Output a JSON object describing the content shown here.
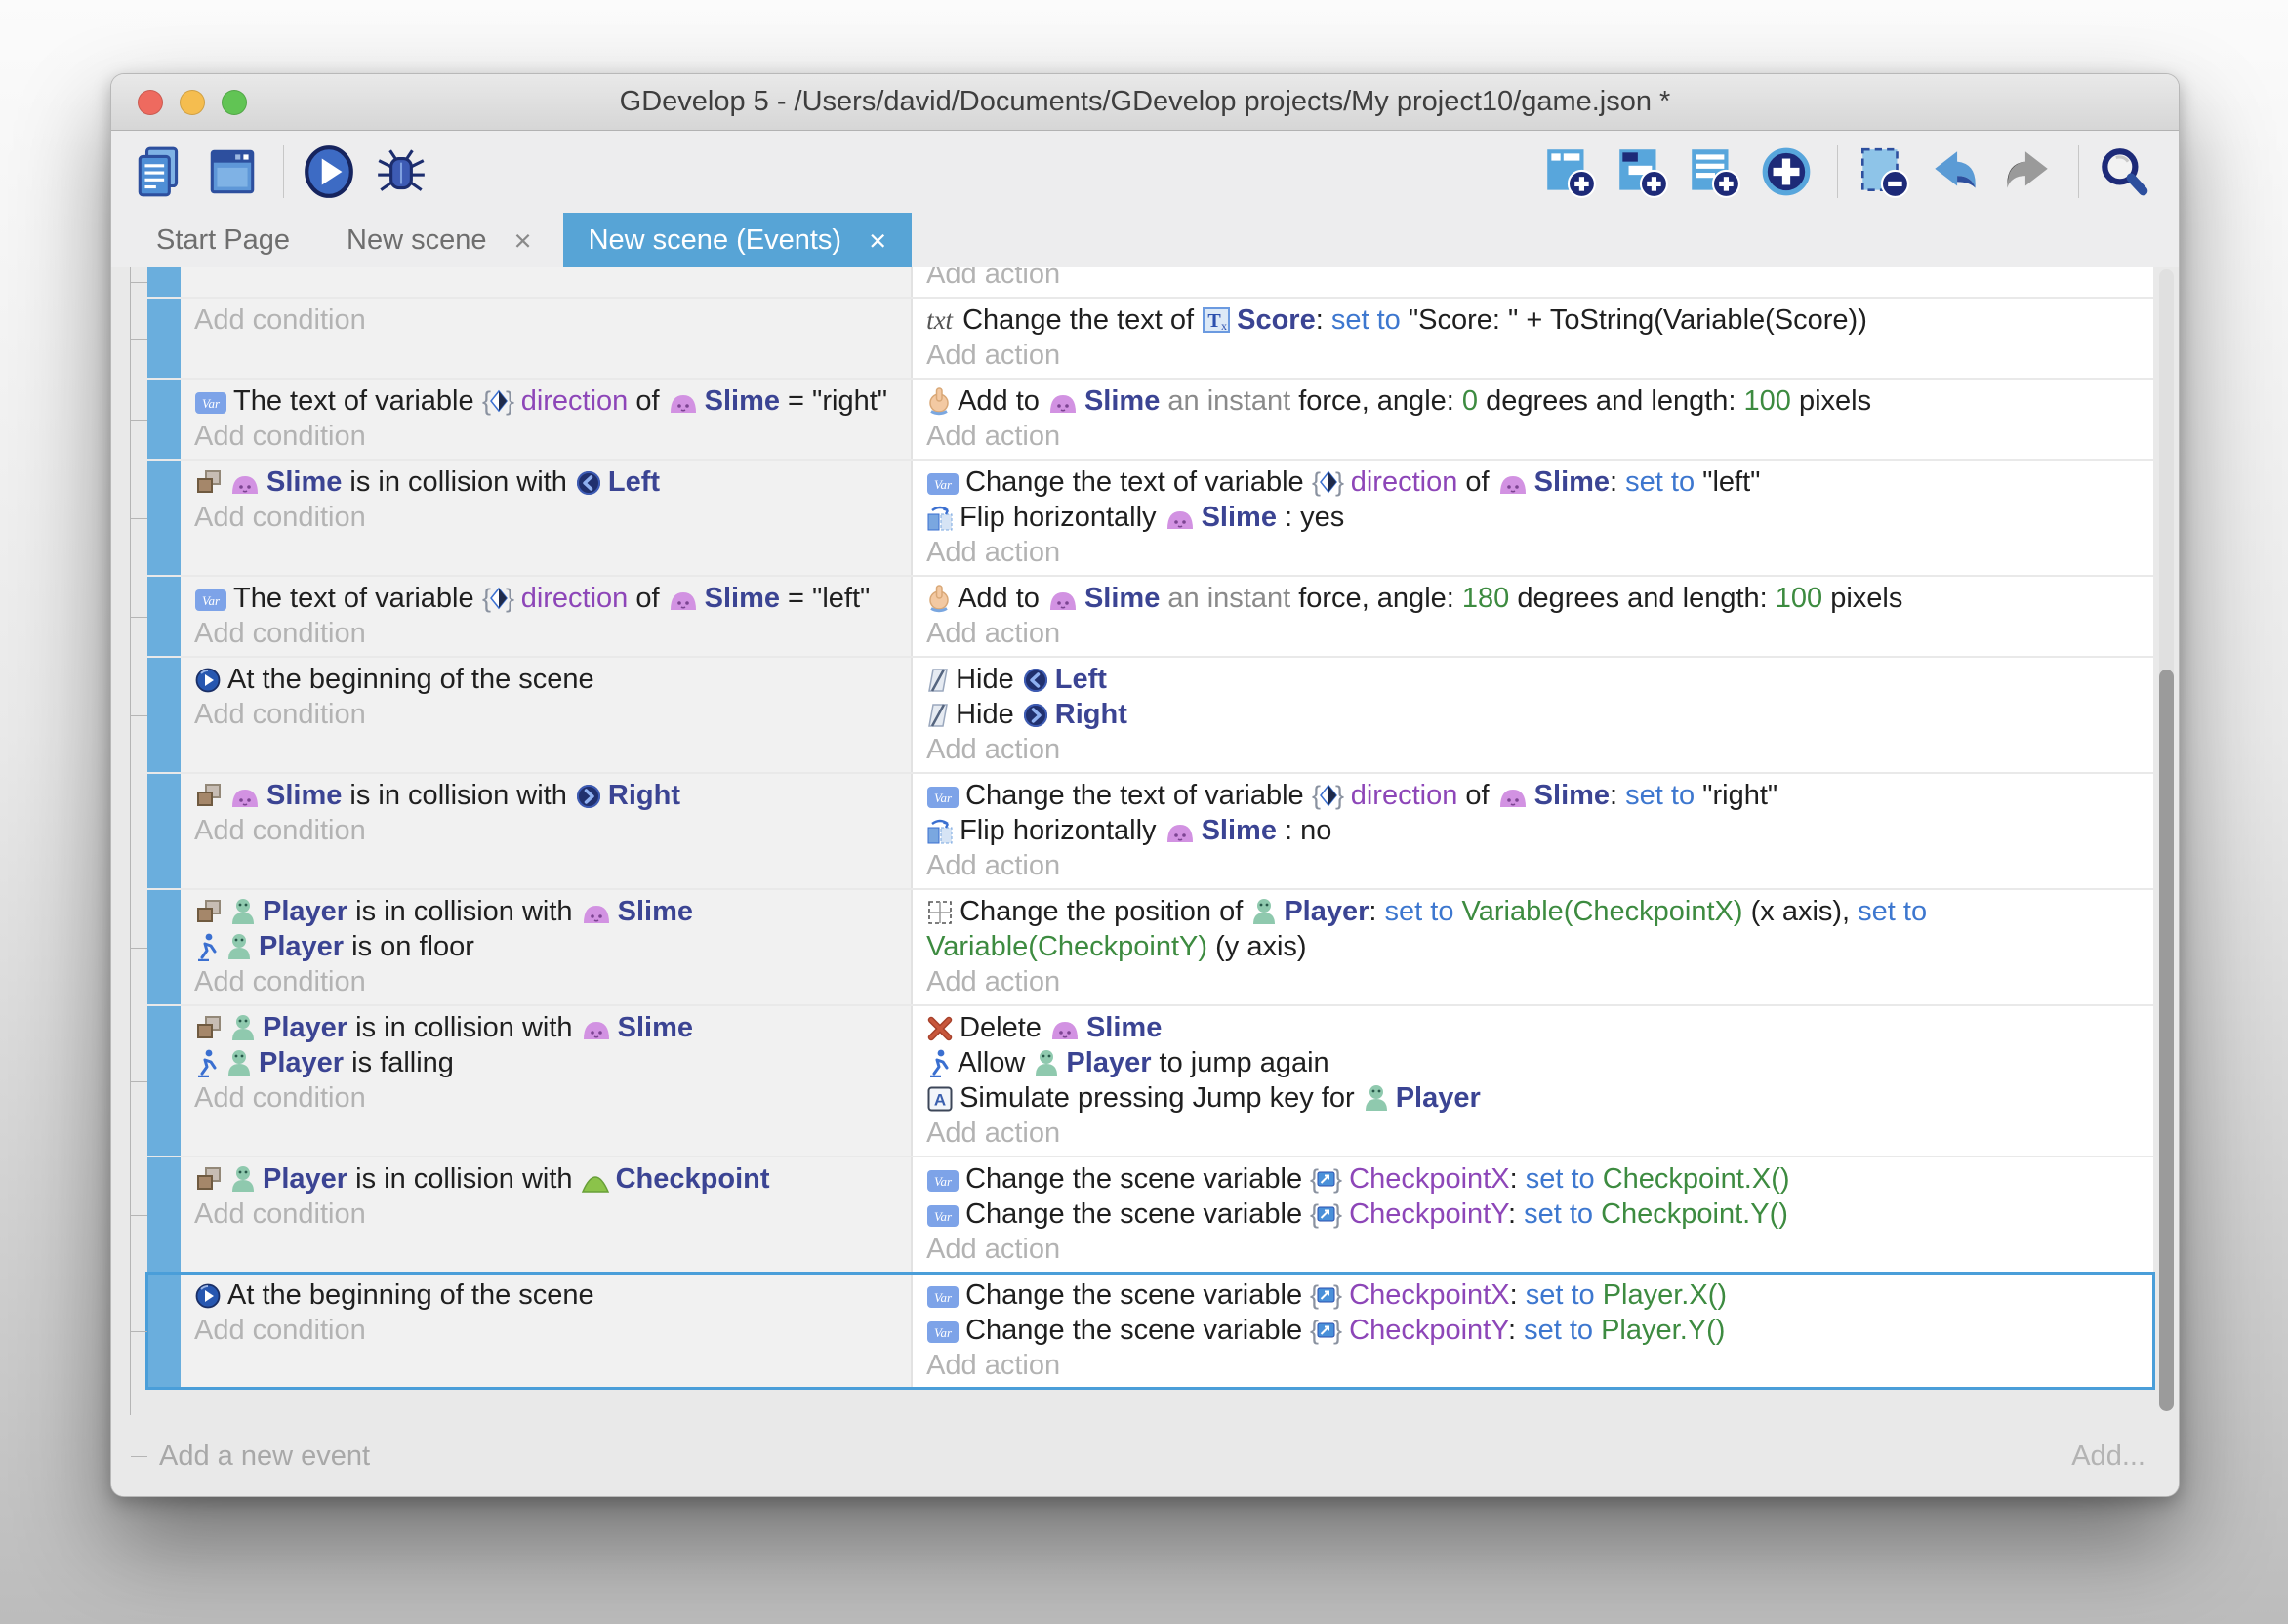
{
  "window": {
    "title": "GDevelop 5 - /Users/david/Documents/GDevelop projects/My project10/game.json *"
  },
  "colors": {
    "accent_tab": "#57a4d6",
    "event_bar": "#6aaedd",
    "object_name": "#3b4493",
    "variable_name": "#8d46b8",
    "keyword": "#3d77cf",
    "expression": "#3d8b40",
    "placeholder": "#b3b3b3",
    "selected_outline": "#4a9ed9",
    "traffic_lights": [
      "#ee6a5f",
      "#f5bd4f",
      "#61c454"
    ]
  },
  "toolbar": {
    "left": [
      {
        "button": "project-manager-button",
        "icon": "project-manager-icon"
      },
      {
        "button": "scene-editor-button",
        "icon": "scene-editor-icon"
      },
      {
        "sep": true
      },
      {
        "button": "preview-button",
        "icon": "play-icon"
      },
      {
        "button": "debug-button",
        "icon": "debug-icon"
      }
    ],
    "right": [
      {
        "button": "add-event-button",
        "icon": "add-event-icon"
      },
      {
        "button": "add-subevent-button",
        "icon": "add-subevent-icon"
      },
      {
        "button": "add-comment-button",
        "icon": "add-comment-icon"
      },
      {
        "button": "add-more-button",
        "icon": "add-circle-icon"
      },
      {
        "sep": true
      },
      {
        "button": "delete-event-button",
        "icon": "remove-event-icon"
      },
      {
        "button": "undo-button",
        "icon": "undo-icon"
      },
      {
        "button": "redo-button",
        "icon": "redo-icon"
      },
      {
        "sep": true
      },
      {
        "button": "search-button",
        "icon": "search-icon"
      }
    ]
  },
  "tabs": [
    {
      "label": "Start Page",
      "closable": false,
      "active": false
    },
    {
      "label": "New scene",
      "closable": true,
      "active": false
    },
    {
      "label": "New scene (Events)",
      "closable": true,
      "active": true
    }
  ],
  "events": [
    {
      "clipped": true,
      "conditions": [],
      "actions": [
        {
          "ph": "Add action"
        }
      ]
    },
    {
      "conditions": [
        {
          "ph": "Add condition"
        }
      ],
      "actions": [
        {
          "seg": [
            {
              "i": "txt-icon"
            },
            {
              "t": "Change the text of ",
              "s": "n"
            },
            {
              "i": "text-object-icon"
            },
            {
              "t": "Score",
              "s": "obj"
            },
            {
              "t": ": ",
              "s": "n"
            },
            {
              "t": "set to ",
              "s": "kw"
            },
            {
              "t": "\"Score: \" + ToString(Variable(Score))",
              "s": "n"
            }
          ]
        },
        {
          "ph": "Add action"
        }
      ]
    },
    {
      "conditions": [
        {
          "seg": [
            {
              "i": "variable-icon"
            },
            {
              "t": "The text of variable ",
              "s": "n"
            },
            {
              "i": "structure-variable-icon"
            },
            {
              "t": "direction",
              "s": "var"
            },
            {
              "t": " of ",
              "s": "n"
            },
            {
              "i": "slime-icon"
            },
            {
              "t": "Slime",
              "s": "obj"
            },
            {
              "t": " = \"right\"",
              "s": "n"
            }
          ]
        },
        {
          "ph": "Add condition"
        }
      ],
      "actions": [
        {
          "seg": [
            {
              "i": "force-hand-icon"
            },
            {
              "t": "Add to ",
              "s": "n"
            },
            {
              "i": "slime-icon"
            },
            {
              "t": "Slime",
              "s": "obj"
            },
            {
              "t": " an instant ",
              "s": "dim"
            },
            {
              "t": "force, angle: ",
              "s": "n"
            },
            {
              "t": "0",
              "s": "expr"
            },
            {
              "t": " degrees and length: ",
              "s": "n"
            },
            {
              "t": "100",
              "s": "expr"
            },
            {
              "t": " pixels",
              "s": "n"
            }
          ]
        },
        {
          "ph": "Add action"
        }
      ]
    },
    {
      "conditions": [
        {
          "seg": [
            {
              "i": "collision-icon"
            },
            {
              "i": "slime-icon"
            },
            {
              "t": "Slime",
              "s": "obj"
            },
            {
              "t": " is in collision with ",
              "s": "n"
            },
            {
              "i": "left-object-icon"
            },
            {
              "t": "Left",
              "s": "obj"
            }
          ]
        },
        {
          "ph": "Add condition"
        }
      ],
      "actions": [
        {
          "seg": [
            {
              "i": "variable-icon"
            },
            {
              "t": "Change the text of variable ",
              "s": "n"
            },
            {
              "i": "structure-variable-icon"
            },
            {
              "t": "direction",
              "s": "var"
            },
            {
              "t": " of ",
              "s": "n"
            },
            {
              "i": "slime-icon"
            },
            {
              "t": "Slime",
              "s": "obj"
            },
            {
              "t": ": ",
              "s": "n"
            },
            {
              "t": "set to ",
              "s": "kw"
            },
            {
              "t": "\"left\"",
              "s": "n"
            }
          ]
        },
        {
          "seg": [
            {
              "i": "flip-icon"
            },
            {
              "t": "Flip horizontally ",
              "s": "n"
            },
            {
              "i": "slime-icon"
            },
            {
              "t": "Slime",
              "s": "obj"
            },
            {
              "t": " : yes",
              "s": "n"
            }
          ]
        },
        {
          "ph": "Add action"
        }
      ]
    },
    {
      "conditions": [
        {
          "seg": [
            {
              "i": "variable-icon"
            },
            {
              "t": "The text of variable ",
              "s": "n"
            },
            {
              "i": "structure-variable-icon"
            },
            {
              "t": "direction",
              "s": "var"
            },
            {
              "t": " of ",
              "s": "n"
            },
            {
              "i": "slime-icon"
            },
            {
              "t": "Slime",
              "s": "obj"
            },
            {
              "t": " = \"left\"",
              "s": "n"
            }
          ]
        },
        {
          "ph": "Add condition"
        }
      ],
      "actions": [
        {
          "seg": [
            {
              "i": "force-hand-icon"
            },
            {
              "t": "Add to ",
              "s": "n"
            },
            {
              "i": "slime-icon"
            },
            {
              "t": "Slime",
              "s": "obj"
            },
            {
              "t": " an instant ",
              "s": "dim"
            },
            {
              "t": "force, angle: ",
              "s": "n"
            },
            {
              "t": "180",
              "s": "expr"
            },
            {
              "t": " degrees and length: ",
              "s": "n"
            },
            {
              "t": "100",
              "s": "expr"
            },
            {
              "t": " pixels",
              "s": "n"
            }
          ]
        },
        {
          "ph": "Add action"
        }
      ]
    },
    {
      "conditions": [
        {
          "seg": [
            {
              "i": "begin-icon"
            },
            {
              "t": "At the beginning of the scene",
              "s": "n"
            }
          ]
        },
        {
          "ph": "Add condition"
        }
      ],
      "actions": [
        {
          "seg": [
            {
              "i": "hide-icon"
            },
            {
              "t": "Hide ",
              "s": "n"
            },
            {
              "i": "left-object-icon"
            },
            {
              "t": "Left",
              "s": "obj"
            }
          ]
        },
        {
          "seg": [
            {
              "i": "hide-icon"
            },
            {
              "t": "Hide ",
              "s": "n"
            },
            {
              "i": "right-object-icon"
            },
            {
              "t": "Right",
              "s": "obj"
            }
          ]
        },
        {
          "ph": "Add action"
        }
      ]
    },
    {
      "conditions": [
        {
          "seg": [
            {
              "i": "collision-icon"
            },
            {
              "i": "slime-icon"
            },
            {
              "t": "Slime",
              "s": "obj"
            },
            {
              "t": " is in collision with ",
              "s": "n"
            },
            {
              "i": "right-object-icon"
            },
            {
              "t": "Right",
              "s": "obj"
            }
          ]
        },
        {
          "ph": "Add condition"
        }
      ],
      "actions": [
        {
          "seg": [
            {
              "i": "variable-icon"
            },
            {
              "t": "Change the text of variable ",
              "s": "n"
            },
            {
              "i": "structure-variable-icon"
            },
            {
              "t": "direction",
              "s": "var"
            },
            {
              "t": " of ",
              "s": "n"
            },
            {
              "i": "slime-icon"
            },
            {
              "t": "Slime",
              "s": "obj"
            },
            {
              "t": ": ",
              "s": "n"
            },
            {
              "t": "set to ",
              "s": "kw"
            },
            {
              "t": "\"right\"",
              "s": "n"
            }
          ]
        },
        {
          "seg": [
            {
              "i": "flip-icon"
            },
            {
              "t": "Flip horizontally ",
              "s": "n"
            },
            {
              "i": "slime-icon"
            },
            {
              "t": "Slime",
              "s": "obj"
            },
            {
              "t": " : no",
              "s": "n"
            }
          ]
        },
        {
          "ph": "Add action"
        }
      ]
    },
    {
      "conditions": [
        {
          "seg": [
            {
              "i": "collision-icon"
            },
            {
              "i": "player-icon"
            },
            {
              "t": "Player",
              "s": "obj"
            },
            {
              "t": " is in collision with ",
              "s": "n"
            },
            {
              "i": "slime-icon"
            },
            {
              "t": "Slime",
              "s": "obj"
            }
          ]
        },
        {
          "seg": [
            {
              "i": "platformer-icon"
            },
            {
              "i": "player-icon"
            },
            {
              "t": "Player",
              "s": "obj"
            },
            {
              "t": " is on floor",
              "s": "n"
            }
          ]
        },
        {
          "ph": "Add condition"
        }
      ],
      "actions": [
        {
          "seg": [
            {
              "i": "position-icon"
            },
            {
              "t": "Change the position of ",
              "s": "n"
            },
            {
              "i": "player-icon"
            },
            {
              "t": "Player",
              "s": "obj"
            },
            {
              "t": ": ",
              "s": "n"
            },
            {
              "t": "set to ",
              "s": "kw"
            },
            {
              "t": "Variable(CheckpointX)",
              "s": "expr"
            },
            {
              "t": " (x axis), ",
              "s": "n"
            },
            {
              "t": "set to ",
              "s": "kw"
            },
            {
              "t": "Variable(CheckpointY)",
              "s": "expr"
            },
            {
              "t": " (y axis)",
              "s": "n"
            }
          ]
        },
        {
          "ph": "Add action"
        }
      ]
    },
    {
      "conditions": [
        {
          "seg": [
            {
              "i": "collision-icon"
            },
            {
              "i": "player-icon"
            },
            {
              "t": "Player",
              "s": "obj"
            },
            {
              "t": " is in collision with ",
              "s": "n"
            },
            {
              "i": "slime-icon"
            },
            {
              "t": "Slime",
              "s": "obj"
            }
          ]
        },
        {
          "seg": [
            {
              "i": "platformer-icon"
            },
            {
              "i": "player-icon"
            },
            {
              "t": "Player",
              "s": "obj"
            },
            {
              "t": " is falling",
              "s": "n"
            }
          ]
        },
        {
          "ph": "Add condition"
        }
      ],
      "actions": [
        {
          "seg": [
            {
              "i": "delete-icon"
            },
            {
              "t": "Delete ",
              "s": "n"
            },
            {
              "i": "slime-icon"
            },
            {
              "t": "Slime",
              "s": "obj"
            }
          ]
        },
        {
          "seg": [
            {
              "i": "platformer-icon"
            },
            {
              "t": "Allow ",
              "s": "n"
            },
            {
              "i": "player-icon"
            },
            {
              "t": "Player",
              "s": "obj"
            },
            {
              "t": " to jump again",
              "s": "n"
            }
          ]
        },
        {
          "seg": [
            {
              "i": "key-icon"
            },
            {
              "t": "Simulate pressing Jump key for ",
              "s": "n"
            },
            {
              "i": "player-icon"
            },
            {
              "t": "Player",
              "s": "obj"
            }
          ]
        },
        {
          "ph": "Add action"
        }
      ]
    },
    {
      "conditions": [
        {
          "seg": [
            {
              "i": "collision-icon"
            },
            {
              "i": "player-icon"
            },
            {
              "t": "Player",
              "s": "obj"
            },
            {
              "t": " is in collision with ",
              "s": "n"
            },
            {
              "i": "checkpoint-icon"
            },
            {
              "t": "Checkpoint",
              "s": "obj"
            }
          ]
        },
        {
          "ph": "Add condition"
        }
      ],
      "actions": [
        {
          "seg": [
            {
              "i": "variable-icon"
            },
            {
              "t": "Change the scene variable ",
              "s": "n"
            },
            {
              "i": "scene-variable-icon"
            },
            {
              "t": "CheckpointX",
              "s": "var"
            },
            {
              "t": ": ",
              "s": "n"
            },
            {
              "t": "set to ",
              "s": "kw"
            },
            {
              "t": "Checkpoint.X()",
              "s": "expr"
            }
          ]
        },
        {
          "seg": [
            {
              "i": "variable-icon"
            },
            {
              "t": "Change the scene variable ",
              "s": "n"
            },
            {
              "i": "scene-variable-icon"
            },
            {
              "t": "CheckpointY",
              "s": "var"
            },
            {
              "t": ": ",
              "s": "n"
            },
            {
              "t": "set to ",
              "s": "kw"
            },
            {
              "t": "Checkpoint.Y()",
              "s": "expr"
            }
          ]
        },
        {
          "ph": "Add action"
        }
      ]
    },
    {
      "selected": true,
      "conditions": [
        {
          "seg": [
            {
              "i": "begin-icon"
            },
            {
              "t": "At the beginning of the scene",
              "s": "n"
            }
          ]
        },
        {
          "ph": "Add condition"
        }
      ],
      "actions": [
        {
          "seg": [
            {
              "i": "variable-icon"
            },
            {
              "t": "Change the scene variable ",
              "s": "n"
            },
            {
              "i": "scene-variable-icon"
            },
            {
              "t": "CheckpointX",
              "s": "var"
            },
            {
              "t": ": ",
              "s": "n"
            },
            {
              "t": "set to ",
              "s": "kw"
            },
            {
              "t": "Player.X()",
              "s": "expr"
            }
          ]
        },
        {
          "seg": [
            {
              "i": "variable-icon"
            },
            {
              "t": "Change the scene variable ",
              "s": "n"
            },
            {
              "i": "scene-variable-icon"
            },
            {
              "t": "CheckpointY",
              "s": "var"
            },
            {
              "t": ": ",
              "s": "n"
            },
            {
              "t": "set to ",
              "s": "kw"
            },
            {
              "t": "Player.Y()",
              "s": "expr"
            }
          ]
        },
        {
          "ph": "Add action"
        }
      ]
    }
  ],
  "footer": {
    "add_new_event_label": "Add a new event",
    "add_button_label": "Add..."
  }
}
